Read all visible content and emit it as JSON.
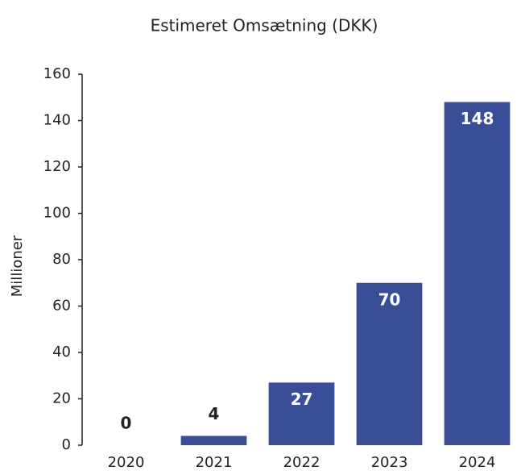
{
  "chart_data": {
    "type": "bar",
    "title": "Estimeret Omsætning (DKK)",
    "y_label": "Millioner",
    "categories": [
      "2020",
      "2021",
      "2022",
      "2023",
      "2024"
    ],
    "values": [
      0,
      4,
      27,
      70,
      148
    ],
    "color": "#3a4e97",
    "ylim": [
      0,
      160
    ],
    "yticks": [
      0,
      20,
      40,
      60,
      80,
      100,
      120,
      140,
      160
    ],
    "grid": false
  }
}
